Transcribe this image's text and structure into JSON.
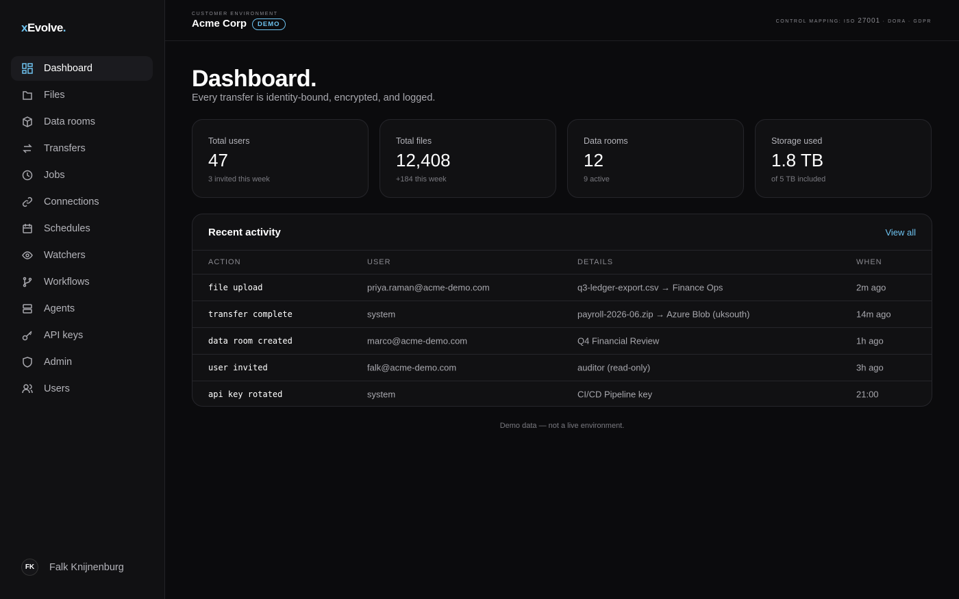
{
  "logo": {
    "x": "x",
    "word": "Evolve",
    "dot": "."
  },
  "nav": [
    {
      "label": "Dashboard",
      "active": true
    },
    {
      "label": "Files",
      "active": false
    },
    {
      "label": "Data rooms",
      "active": false
    },
    {
      "label": "Transfers",
      "active": false
    },
    {
      "label": "Jobs",
      "active": false
    },
    {
      "label": "Connections",
      "active": false
    },
    {
      "label": "Schedules",
      "active": false
    },
    {
      "label": "Watchers",
      "active": false
    },
    {
      "label": "Workflows",
      "active": false
    },
    {
      "label": "Agents",
      "active": false
    },
    {
      "label": "API keys",
      "active": false
    },
    {
      "label": "Admin",
      "active": false
    },
    {
      "label": "Users",
      "active": false
    }
  ],
  "user": {
    "initials": "FK",
    "name": "Falk Knijnenburg"
  },
  "header": {
    "eyebrow": "CUSTOMER ENVIRONMENT",
    "customer": "Acme Corp",
    "badge": "DEMO",
    "mapping_label": "CONTROL MAPPING: ISO",
    "mapping_iso": "27001",
    "mapping_rest": "· DORA · GDPR"
  },
  "page": {
    "title": "Dashboard.",
    "subtitle": "Every transfer is identity-bound, encrypted, and logged."
  },
  "stats": [
    {
      "label": "Total users",
      "value": "47",
      "note": "3 invited this week"
    },
    {
      "label": "Total files",
      "value": "12,408",
      "note": "+184 this week"
    },
    {
      "label": "Data rooms",
      "value": "12",
      "note": "9 active"
    },
    {
      "label": "Storage used",
      "value": "1.8 TB",
      "note": "of 5 TB included"
    }
  ],
  "activity": {
    "title": "Recent activity",
    "link": "View all",
    "columns": [
      "ACTION",
      "USER",
      "DETAILS",
      "WHEN"
    ],
    "rows": [
      [
        "file upload",
        "priya.raman@acme-demo.com",
        "q3-ledger-export.csv → Finance Ops",
        "2m ago"
      ],
      [
        "transfer complete",
        "system",
        "payroll-2026-06.zip → Azure Blob (uksouth)",
        "14m ago"
      ],
      [
        "data room created",
        "marco@acme-demo.com",
        "Q4 Financial Review",
        "1h ago"
      ],
      [
        "user invited",
        "falk@acme-demo.com",
        "auditor (read-only)",
        "3h ago"
      ],
      [
        "api key rotated",
        "system",
        "CI/CD Pipeline key",
        "21:00"
      ]
    ]
  },
  "footer": "Demo data — not a live environment."
}
